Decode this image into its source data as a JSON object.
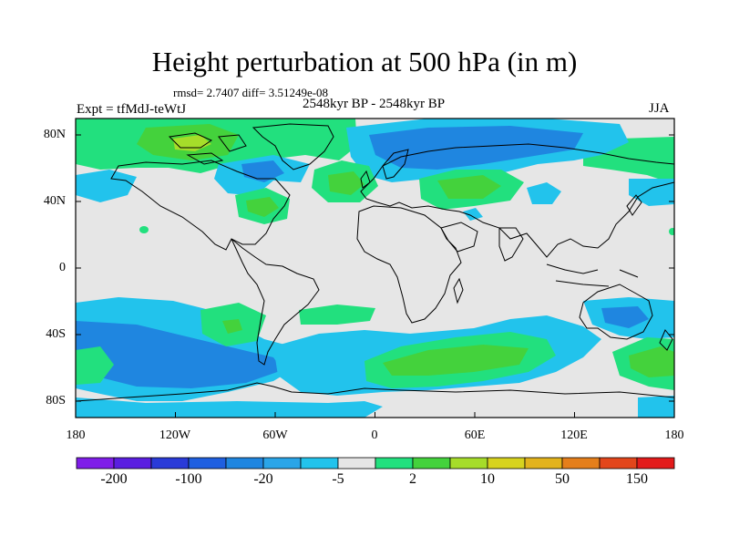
{
  "title": "Height perturbation at 500 hPa (in m)",
  "stats": "rmsd= 2.7407 diff= 3.51249e-08",
  "experiment": "Expt = tfMdJ-teWtJ",
  "period": "2548kyr BP - 2548kyr BP",
  "season": "JJA",
  "y_axis": {
    "tick_labels": [
      "80N",
      "40N",
      "0",
      "40S",
      "80S"
    ],
    "tick_values": [
      80,
      40,
      0,
      -40,
      -80
    ]
  },
  "x_axis": {
    "tick_labels": [
      "180",
      "120W",
      "60W",
      "0",
      "60E",
      "120E",
      "180"
    ],
    "tick_values": [
      -180,
      -120,
      -60,
      0,
      60,
      120,
      180
    ]
  },
  "colorbar": {
    "colors": [
      "#7f1de8",
      "#5a1ee0",
      "#2a3bd8",
      "#1f5fe0",
      "#1f86e0",
      "#2aa5e8",
      "#22c3ec",
      "#e6e6e6",
      "#22e07e",
      "#44d23c",
      "#a6dd2a",
      "#d7d31e",
      "#e3b31c",
      "#e57f1b",
      "#e3461b",
      "#e31b1b"
    ],
    "labels": [
      "-200",
      "-100",
      "-20",
      "-5",
      "2",
      "10",
      "50",
      "150"
    ]
  },
  "colors": {
    "background": "#e6e6e6",
    "light_blue": "#22c3ec",
    "blue": "#1f86e0",
    "green": "#22e07e",
    "bright_green": "#44d23c",
    "yellow_green": "#a6dd2a"
  }
}
